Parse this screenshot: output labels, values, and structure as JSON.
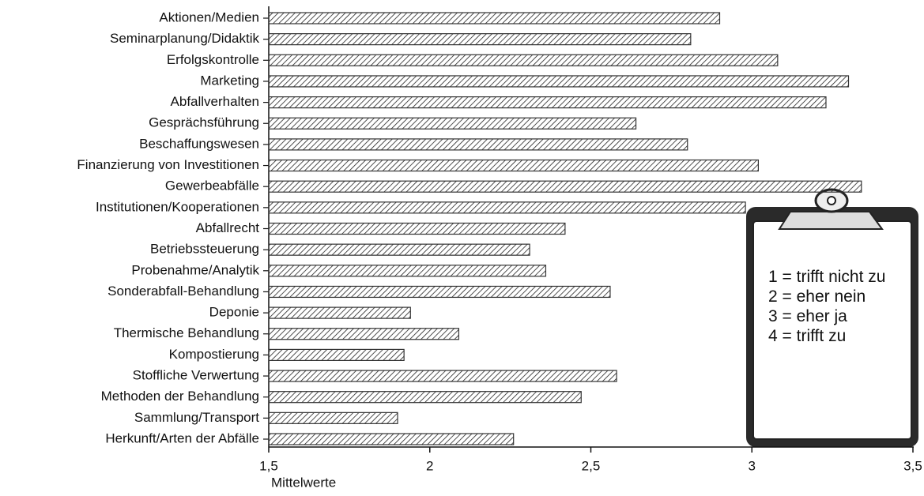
{
  "chart_data": {
    "type": "bar",
    "orientation": "horizontal",
    "xlabel": "Mittelwerte",
    "categories": [
      "Aktionen/Medien",
      "Seminarplanung/Didaktik",
      "Erfolgskontrolle",
      "Marketing",
      "Abfallverhalten",
      "Gesprächsführung",
      "Beschaffungswesen",
      "Finanzierung von Investitionen",
      "Gewerbeabfälle",
      "Institutionen/Kooperationen",
      "Abfallrecht",
      "Betriebssteuerung",
      "Probenahme/Analytik",
      "Sonderabfall-Behandlung",
      "Deponie",
      "Thermische Behandlung",
      "Kompostierung",
      "Stoffliche Verwertung",
      "Methoden der Behandlung",
      "Sammlung/Transport",
      "Herkunft/Arten der Abfälle"
    ],
    "values": [
      2.9,
      2.81,
      3.08,
      3.3,
      3.23,
      2.64,
      2.8,
      3.02,
      3.34,
      2.98,
      2.42,
      2.31,
      2.36,
      2.56,
      1.94,
      2.09,
      1.92,
      2.58,
      2.47,
      1.9,
      2.26
    ],
    "color": "#333333",
    "xlim": [
      1.5,
      3.5
    ],
    "xticks": [
      {
        "value": 1.5,
        "label": "1,5"
      },
      2,
      {
        "value": 2.5,
        "label": "2,5"
      },
      3,
      {
        "value": 3.5,
        "label": "3,5"
      }
    ],
    "annotations": [
      "1 = trifft nicht zu",
      "2 = eher nein",
      "3 = eher ja",
      "4 = trifft zu"
    ]
  }
}
